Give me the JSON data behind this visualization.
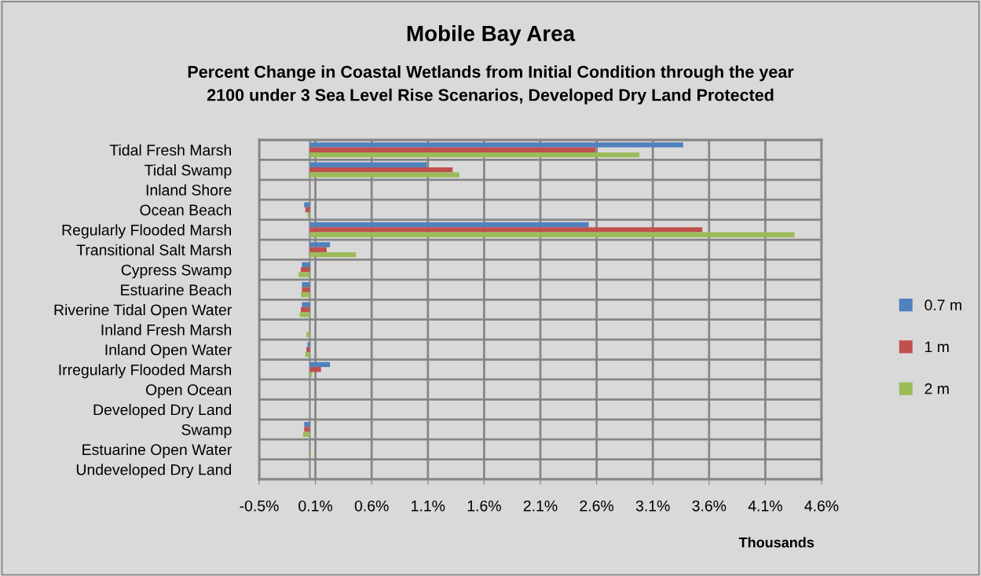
{
  "chart_data": {
    "type": "bar",
    "orientation": "horizontal",
    "title": "Mobile Bay Area",
    "subtitle": "Percent Change in Coastal Wetlands from Initial Condition through the year\n2100 under 3 Sea Level Rise Scenarios, Developed Dry Land Protected",
    "xlabel": "Thousands",
    "categories": [
      "Tidal Fresh Marsh",
      "Tidal Swamp",
      "Inland Shore",
      "Ocean Beach",
      "Regularly Flooded Marsh",
      "Transitional Salt Marsh",
      "Cypress Swamp",
      "Estuarine Beach",
      "Riverine Tidal Open Water",
      "Inland Fresh Marsh",
      "Inland Open Water",
      "Irregularly Flooded Marsh",
      "Open Ocean",
      "Developed Dry Land",
      "Swamp",
      "Estuarine Open Water",
      "Undeveloped Dry Land"
    ],
    "series": [
      {
        "name": "0.7 m",
        "color": "#4f81bd",
        "values": [
          3.32,
          1.04,
          0,
          -0.05,
          2.48,
          0.18,
          -0.07,
          -0.07,
          -0.07,
          0,
          -0.02,
          0.18,
          0,
          0,
          -0.05,
          0,
          0
        ]
      },
      {
        "name": "1 m",
        "color": "#c0504d",
        "values": [
          2.54,
          1.27,
          0,
          -0.04,
          3.49,
          0.15,
          -0.08,
          -0.07,
          -0.08,
          0,
          -0.03,
          0.1,
          0,
          0,
          -0.05,
          0,
          0
        ]
      },
      {
        "name": "2 m",
        "color": "#9bbb59",
        "values": [
          2.93,
          1.33,
          0,
          -0.02,
          4.31,
          0.41,
          -0.1,
          -0.08,
          -0.09,
          -0.03,
          -0.04,
          0.02,
          0,
          0,
          -0.06,
          0.01,
          0
        ]
      }
    ],
    "xlim": [
      -0.45,
      4.55
    ],
    "xticks": [
      {
        "value": -0.45,
        "label": "-0.5%"
      },
      {
        "value": 0.05,
        "label": "0.1%"
      },
      {
        "value": 0.55,
        "label": "0.6%"
      },
      {
        "value": 1.05,
        "label": "1.1%"
      },
      {
        "value": 1.55,
        "label": "1.6%"
      },
      {
        "value": 2.05,
        "label": "2.1%"
      },
      {
        "value": 2.55,
        "label": "2.6%"
      },
      {
        "value": 3.05,
        "label": "3.1%"
      },
      {
        "value": 3.55,
        "label": "3.6%"
      },
      {
        "value": 4.05,
        "label": "4.1%"
      },
      {
        "value": 4.55,
        "label": "4.6%"
      }
    ],
    "grid": true,
    "legend": "right"
  }
}
